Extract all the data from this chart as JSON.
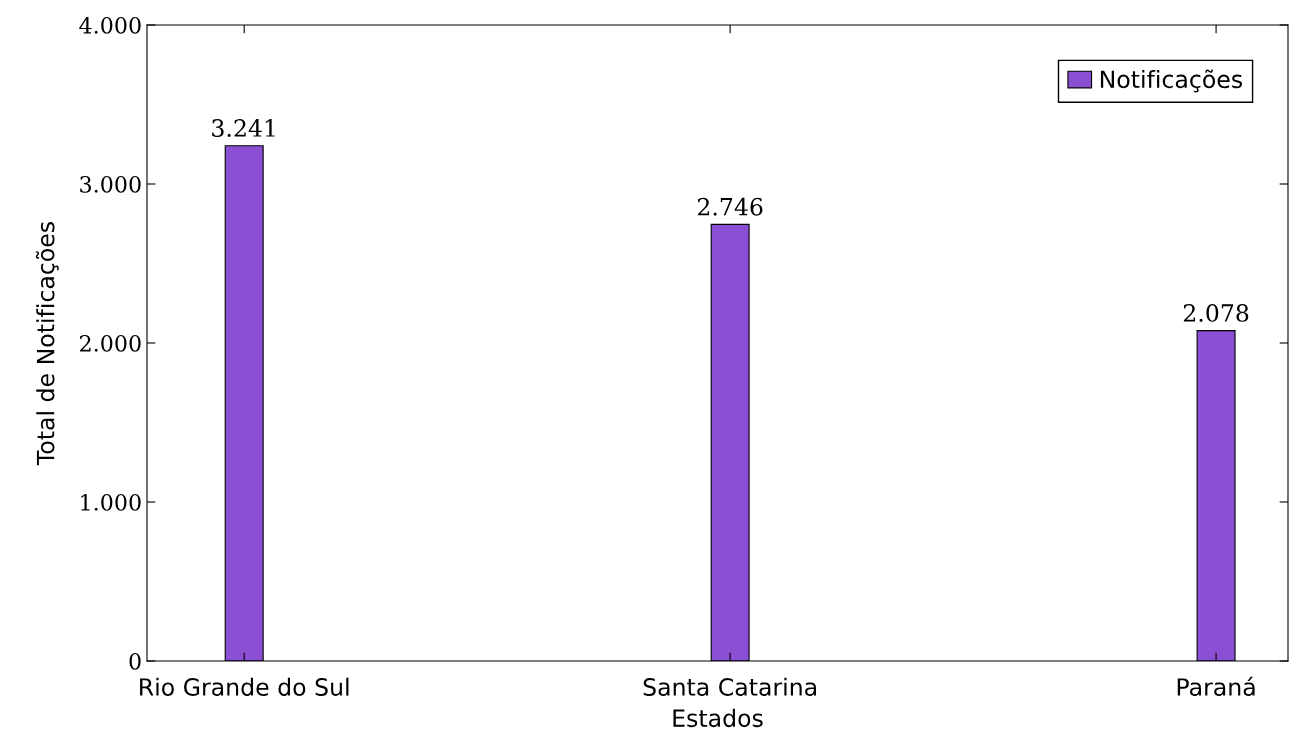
{
  "chart_data": {
    "type": "bar",
    "xlabel": "Estados",
    "ylabel": "Total de Notificações",
    "categories": [
      "Rio Grande do Sul",
      "Santa Catarina",
      "Paraná"
    ],
    "series": [
      {
        "name": "Notificações",
        "color": "#8b4fd4",
        "values": [
          3241,
          2746,
          2078
        ],
        "value_labels": [
          "3.241",
          "2.746",
          "2.078"
        ]
      }
    ],
    "ylim": [
      0,
      4000
    ],
    "yticks": [
      {
        "value": 0,
        "label": "0"
      },
      {
        "value": 1000,
        "label": "1.000"
      },
      {
        "value": 2000,
        "label": "2.000"
      },
      {
        "value": 3000,
        "label": "3.000"
      },
      {
        "value": 4000,
        "label": "4.000"
      }
    ],
    "grid": false,
    "legend": "top right"
  }
}
